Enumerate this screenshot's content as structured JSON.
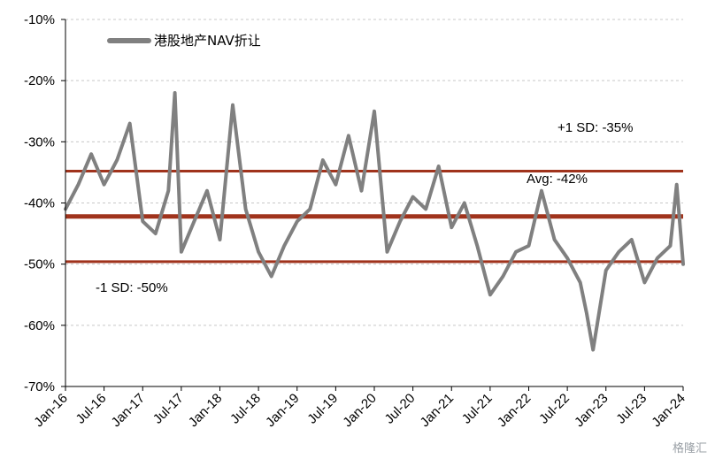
{
  "chart_data": {
    "type": "line",
    "title": "",
    "xlabel": "",
    "ylabel": "",
    "ylim": [
      -70,
      -10
    ],
    "yticks": [
      -10,
      -20,
      -30,
      -40,
      -50,
      -60,
      -70
    ],
    "ytick_labels": [
      "-10%",
      "-20%",
      "-30%",
      "-40%",
      "-50%",
      "-60%",
      "-70%"
    ],
    "xticks": [
      "Jan-16",
      "Jul-16",
      "Jan-17",
      "Jul-17",
      "Jan-18",
      "Jul-18",
      "Jan-19",
      "Jul-19",
      "Jan-20",
      "Jul-20",
      "Jan-21",
      "Jul-21",
      "Jan-22",
      "Jul-22",
      "Jan-23",
      "Jul-23",
      "Jan-24"
    ],
    "grid": "horizontal dashed",
    "legend_position": "top-left",
    "series": [
      {
        "name": "港股地产NAV折让",
        "color": "#808080",
        "x": [
          "Jan-16",
          "Mar-16",
          "May-16",
          "Jul-16",
          "Sep-16",
          "Nov-16",
          "Jan-17",
          "Mar-17",
          "May-17",
          "Jun-17",
          "Jul-17",
          "Sep-17",
          "Nov-17",
          "Jan-18",
          "Mar-18",
          "May-18",
          "Jul-18",
          "Sep-18",
          "Nov-18",
          "Jan-19",
          "Mar-19",
          "May-19",
          "Jul-19",
          "Sep-19",
          "Nov-19",
          "Jan-20",
          "Mar-20",
          "May-20",
          "Jul-20",
          "Sep-20",
          "Nov-20",
          "Jan-21",
          "Mar-21",
          "May-21",
          "Jul-21",
          "Sep-21",
          "Nov-21",
          "Jan-22",
          "Mar-22",
          "May-22",
          "Jul-22",
          "Sep-22",
          "Oct-22",
          "Nov-22",
          "Jan-23",
          "Mar-23",
          "May-23",
          "Jul-23",
          "Sep-23",
          "Nov-23",
          "Dec-23",
          "Jan-24"
        ],
        "values": [
          -41,
          -37,
          -32,
          -37,
          -33,
          -27,
          -43,
          -45,
          -38,
          -22,
          -48,
          -43,
          -38,
          -46,
          -24,
          -41,
          -48,
          -52,
          -47,
          -43,
          -41,
          -33,
          -37,
          -29,
          -38,
          -25,
          -48,
          -43,
          -39,
          -41,
          -34,
          -44,
          -40,
          -47,
          -55,
          -52,
          -48,
          -47,
          -38,
          -46,
          -49,
          -53,
          -58,
          -64,
          -51,
          -48,
          -46,
          -53,
          -49,
          -47,
          -37,
          -50
        ]
      }
    ],
    "reference_lines": [
      {
        "label": "+1 SD: -35%",
        "value": -34.8,
        "color": "#a0331c"
      },
      {
        "label": "Avg: -42%",
        "value": -42.2,
        "color": "#a0331c"
      },
      {
        "label": "-1 SD: -50%",
        "value": -49.6,
        "color": "#a0331c"
      }
    ]
  },
  "watermark": {
    "text": "格隆汇"
  }
}
